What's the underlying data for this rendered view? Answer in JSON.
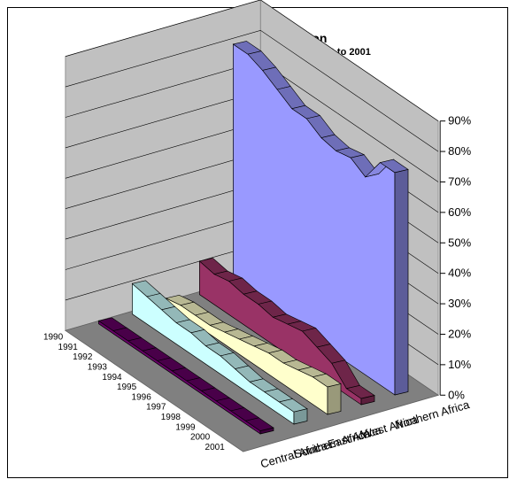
{
  "chart_data": {
    "type": "area",
    "title": "Remittances by Region",
    "subtitle": "Percentage Share of Total to Africa, 1990 to 2001",
    "categories": [
      "1990",
      "1991",
      "1992",
      "1993",
      "1994",
      "1995",
      "1996",
      "1997",
      "1998",
      "1999",
      "2000",
      "2001"
    ],
    "yticks": [
      "0%",
      "10%",
      "20%",
      "30%",
      "40%",
      "50%",
      "60%",
      "70%",
      "80%",
      "90%"
    ],
    "ylim": [
      0,
      90
    ],
    "grid": true,
    "series": [
      {
        "name": "Central Africa",
        "color": "#660066",
        "values": [
          1,
          1,
          1,
          1,
          1,
          1,
          1,
          1,
          1,
          1,
          1,
          1
        ]
      },
      {
        "name": "Southern Africa",
        "color": "#ccffff",
        "values": [
          10,
          9,
          8,
          7,
          7,
          6,
          6,
          5,
          4,
          4,
          4,
          4
        ]
      },
      {
        "name": "East Africa",
        "color": "#ffffcc",
        "values": [
          2,
          3,
          3,
          3,
          4,
          5,
          6,
          7,
          7,
          8,
          9,
          9
        ]
      },
      {
        "name": "West Africa",
        "color": "#993366",
        "values": [
          11,
          10,
          11,
          10,
          10,
          9,
          10,
          11,
          9,
          7,
          2,
          2
        ]
      },
      {
        "name": "Northern Africa",
        "color": "#9999ff",
        "values": [
          79,
          79,
          77,
          74,
          71,
          71,
          68,
          67,
          68,
          65,
          73,
          73
        ]
      }
    ]
  }
}
